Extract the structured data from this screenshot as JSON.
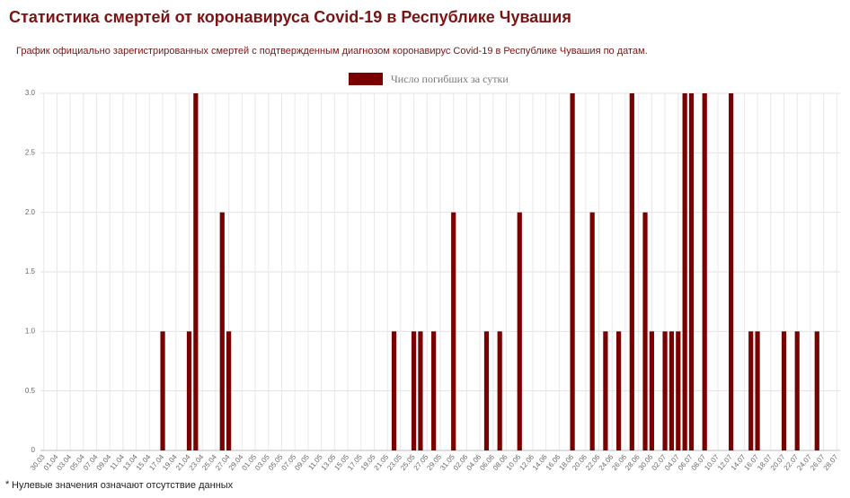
{
  "header": {
    "title": "Статистика смертей от коронавируса Covid-19 в Республике Чувашия",
    "subtitle": "График официально зарегистрированных смертей с подтвержденным диагнозом коронавирус Covid-19 в Республике Чувашия по датам."
  },
  "chart_data": {
    "type": "bar",
    "categories": [
      "30.03",
      null,
      "01.04",
      null,
      "03.04",
      null,
      "05.04",
      null,
      "07.04",
      null,
      "09.04",
      null,
      "11.04",
      null,
      "13.04",
      null,
      "15.04",
      null,
      "17.04",
      null,
      "19.04",
      null,
      "21.04",
      null,
      "23.04",
      null,
      "25.04",
      null,
      "27.04",
      null,
      "29.04",
      null,
      "01.05",
      null,
      "03.05",
      null,
      "05.05",
      null,
      "07.05",
      null,
      "09.05",
      null,
      "11.05",
      null,
      "13.05",
      null,
      "15.05",
      null,
      "17.05",
      null,
      "19.05",
      null,
      "21.05",
      null,
      "23.05",
      null,
      "25.05",
      null,
      "27.05",
      null,
      "29.05",
      null,
      "31.05",
      null,
      "02.06",
      null,
      "04.06",
      null,
      "06.06",
      null,
      "08.06",
      null,
      "10.06",
      null,
      "12.06",
      null,
      "14.06",
      null,
      "16.06",
      null,
      "18.06",
      null,
      "20.06",
      null,
      "22.06",
      null,
      "24.06",
      null,
      "26.06",
      null,
      "28.06",
      null,
      "30.06",
      null,
      "02.07",
      null,
      "04.07",
      null,
      "06.07",
      null,
      "08.07",
      null,
      "10.07",
      null,
      "12.07",
      null,
      "14.07",
      null,
      "16.07",
      null,
      "18.07",
      null,
      "20.07",
      null,
      "22.07",
      null,
      "24.07",
      null,
      "26.07",
      null,
      "28.07"
    ],
    "series": [
      {
        "name": "Число погибших за сутки",
        "color": "#7a0000",
        "values": [
          0,
          0,
          0,
          0,
          0,
          0,
          0,
          0,
          0,
          0,
          0,
          0,
          0,
          0,
          0,
          0,
          0,
          0,
          1,
          0,
          0,
          0,
          1,
          3,
          0,
          0,
          0,
          2,
          1,
          0,
          0,
          0,
          0,
          0,
          0,
          0,
          0,
          0,
          0,
          0,
          0,
          0,
          0,
          0,
          0,
          0,
          0,
          0,
          0,
          0,
          0,
          0,
          0,
          1,
          0,
          0,
          1,
          1,
          0,
          1,
          0,
          0,
          2,
          0,
          0,
          0,
          0,
          1,
          0,
          1,
          0,
          0,
          2,
          0,
          0,
          0,
          0,
          0,
          0,
          0,
          3,
          0,
          0,
          2,
          0,
          1,
          0,
          1,
          0,
          3,
          0,
          2,
          1,
          0,
          1,
          1,
          1,
          3,
          3,
          0,
          3,
          0,
          0,
          0,
          3,
          0,
          0,
          1,
          1,
          0,
          0,
          0,
          1,
          0,
          1,
          0,
          0,
          1,
          0,
          0,
          0
        ]
      }
    ],
    "ylim": [
      0,
      3
    ],
    "yticks": [
      0,
      0.5,
      {
        "value": 1,
        "label": "1.0"
      },
      {
        "value": 1.5,
        "label": "1.5"
      },
      {
        "value": 2,
        "label": "2.0"
      },
      {
        "value": 2.5,
        "label": "2.5"
      },
      {
        "value": 3,
        "label": "3.0"
      }
    ],
    "grid": true,
    "legend": "top",
    "footnote": "Нулевые значения означают отсутствие данных"
  }
}
